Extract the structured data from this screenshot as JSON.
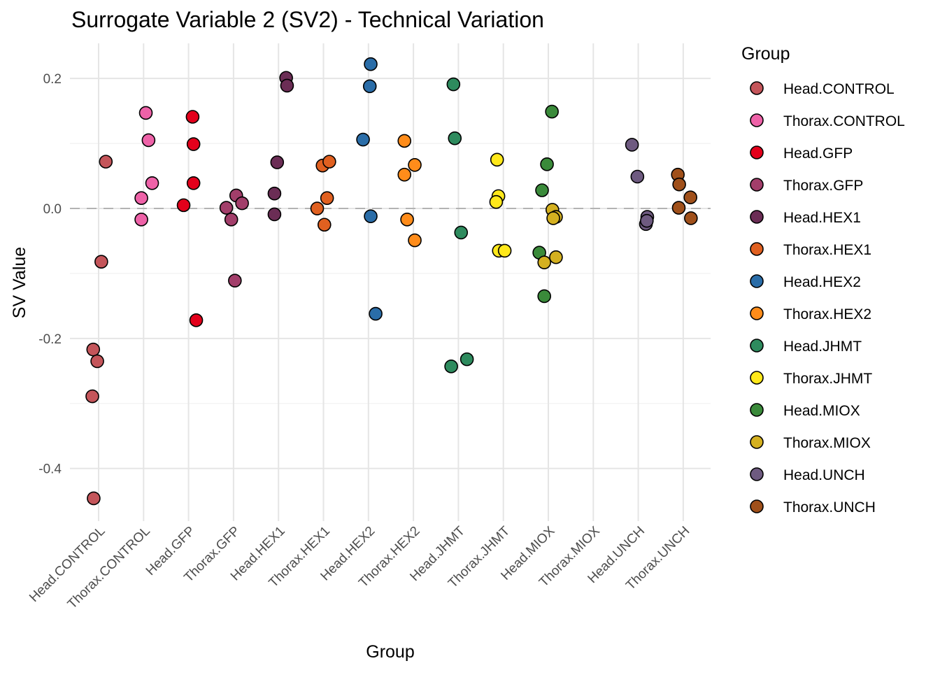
{
  "chart_data": {
    "type": "scatter",
    "title": "Surrogate Variable 2 (SV2) - Technical Variation",
    "xlabel": "Group",
    "ylabel": "SV Value",
    "ylim": [
      -0.481,
      0.254
    ],
    "yticks": [
      0.2,
      0.0,
      -0.2,
      -0.4
    ],
    "yticklabels": [
      "0.2",
      "0.0",
      "-0.2",
      "-0.4"
    ],
    "grid": true,
    "reference_line": {
      "y": 0,
      "style": "dashed",
      "color": "#b3b3b3"
    },
    "legend": {
      "title": "Group",
      "placement": "right"
    },
    "categories": [
      "Head.CONTROL",
      "Thorax.CONTROL",
      "Head.GFP",
      "Thorax.GFP",
      "Head.HEX1",
      "Thorax.HEX1",
      "Head.HEX2",
      "Thorax.HEX2",
      "Head.JHMT",
      "Thorax.JHMT",
      "Head.MIOX",
      "Thorax.MIOX",
      "Head.UNCH",
      "Thorax.UNCH"
    ],
    "series": [
      {
        "name": "Head.CONTROL",
        "color": "#C4555A",
        "x": [
          0.16,
          0.06,
          -0.12,
          -0.03,
          -0.14,
          -0.11
        ],
        "y": [
          0.072,
          -0.082,
          -0.217,
          -0.235,
          -0.289,
          -0.446
        ]
      },
      {
        "name": "Thorax.CONTROL",
        "color": "#EE62A8",
        "x": [
          1.05,
          1.11,
          1.19,
          0.95,
          0.95
        ],
        "y": [
          0.147,
          0.105,
          0.039,
          0.016,
          -0.017
        ]
      },
      {
        "name": "Head.GFP",
        "color": "#E3001B",
        "x": [
          2.09,
          2.11,
          2.11,
          1.89,
          2.17
        ],
        "y": [
          0.141,
          0.099,
          0.039,
          0.005,
          -0.172
        ]
      },
      {
        "name": "Thorax.GFP",
        "color": "#A23E6A",
        "x": [
          3.06,
          3.19,
          2.84,
          2.95,
          3.03
        ],
        "y": [
          0.02,
          0.008,
          0.001,
          -0.017,
          -0.111
        ]
      },
      {
        "name": "Head.HEX1",
        "color": "#6B2D55",
        "x": [
          4.17,
          4.19,
          3.97,
          3.91,
          3.91
        ],
        "y": [
          0.201,
          0.189,
          0.071,
          0.023,
          -0.009
        ]
      },
      {
        "name": "Thorax.HEX1",
        "color": "#E06020",
        "x": [
          4.98,
          5.13,
          5.08,
          4.86,
          5.02
        ],
        "y": [
          0.066,
          0.072,
          0.016,
          0.0,
          -0.025
        ]
      },
      {
        "name": "Head.HEX2",
        "color": "#2A6DA8",
        "x": [
          6.05,
          6.03,
          5.88,
          6.05,
          6.16
        ],
        "y": [
          0.222,
          0.188,
          0.106,
          -0.012,
          -0.162
        ]
      },
      {
        "name": "Thorax.HEX2",
        "color": "#FF8C1A",
        "x": [
          6.8,
          7.03,
          6.8,
          6.86,
          7.03
        ],
        "y": [
          0.104,
          0.067,
          0.052,
          -0.017,
          -0.049
        ]
      },
      {
        "name": "Head.JHMT",
        "color": "#2E8B5E",
        "x": [
          7.89,
          7.92,
          8.06,
          8.19,
          7.84
        ],
        "y": [
          0.191,
          0.108,
          -0.037,
          -0.232,
          -0.243
        ]
      },
      {
        "name": "Thorax.JHMT",
        "color": "#FFE81A",
        "x": [
          8.86,
          8.89,
          8.84,
          8.9,
          9.03
        ],
        "y": [
          0.075,
          0.019,
          0.01,
          -0.065,
          -0.065
        ]
      },
      {
        "name": "Head.MIOX",
        "color": "#3A8A3A",
        "x": [
          10.08,
          9.97,
          9.86,
          9.8,
          9.91
        ],
        "y": [
          0.149,
          0.068,
          0.028,
          -0.068,
          -0.135
        ]
      },
      {
        "name": "Thorax.MIOX",
        "color": "#D4B020",
        "x": [
          10.09,
          10.17,
          10.11,
          9.91,
          10.17
        ],
        "y": [
          -0.002,
          -0.013,
          -0.015,
          -0.083,
          -0.075
        ]
      },
      {
        "name": "Head.UNCH",
        "color": "#6E5A80",
        "x": [
          11.86,
          11.98,
          12.2,
          12.17,
          12.19
        ],
        "y": [
          0.098,
          0.049,
          -0.013,
          -0.024,
          -0.019
        ]
      },
      {
        "name": "Thorax.UNCH",
        "color": "#A0501A",
        "x": [
          12.88,
          12.91,
          13.16,
          12.9,
          13.17
        ],
        "y": [
          0.052,
          0.037,
          0.017,
          0.001,
          -0.015
        ]
      }
    ]
  }
}
